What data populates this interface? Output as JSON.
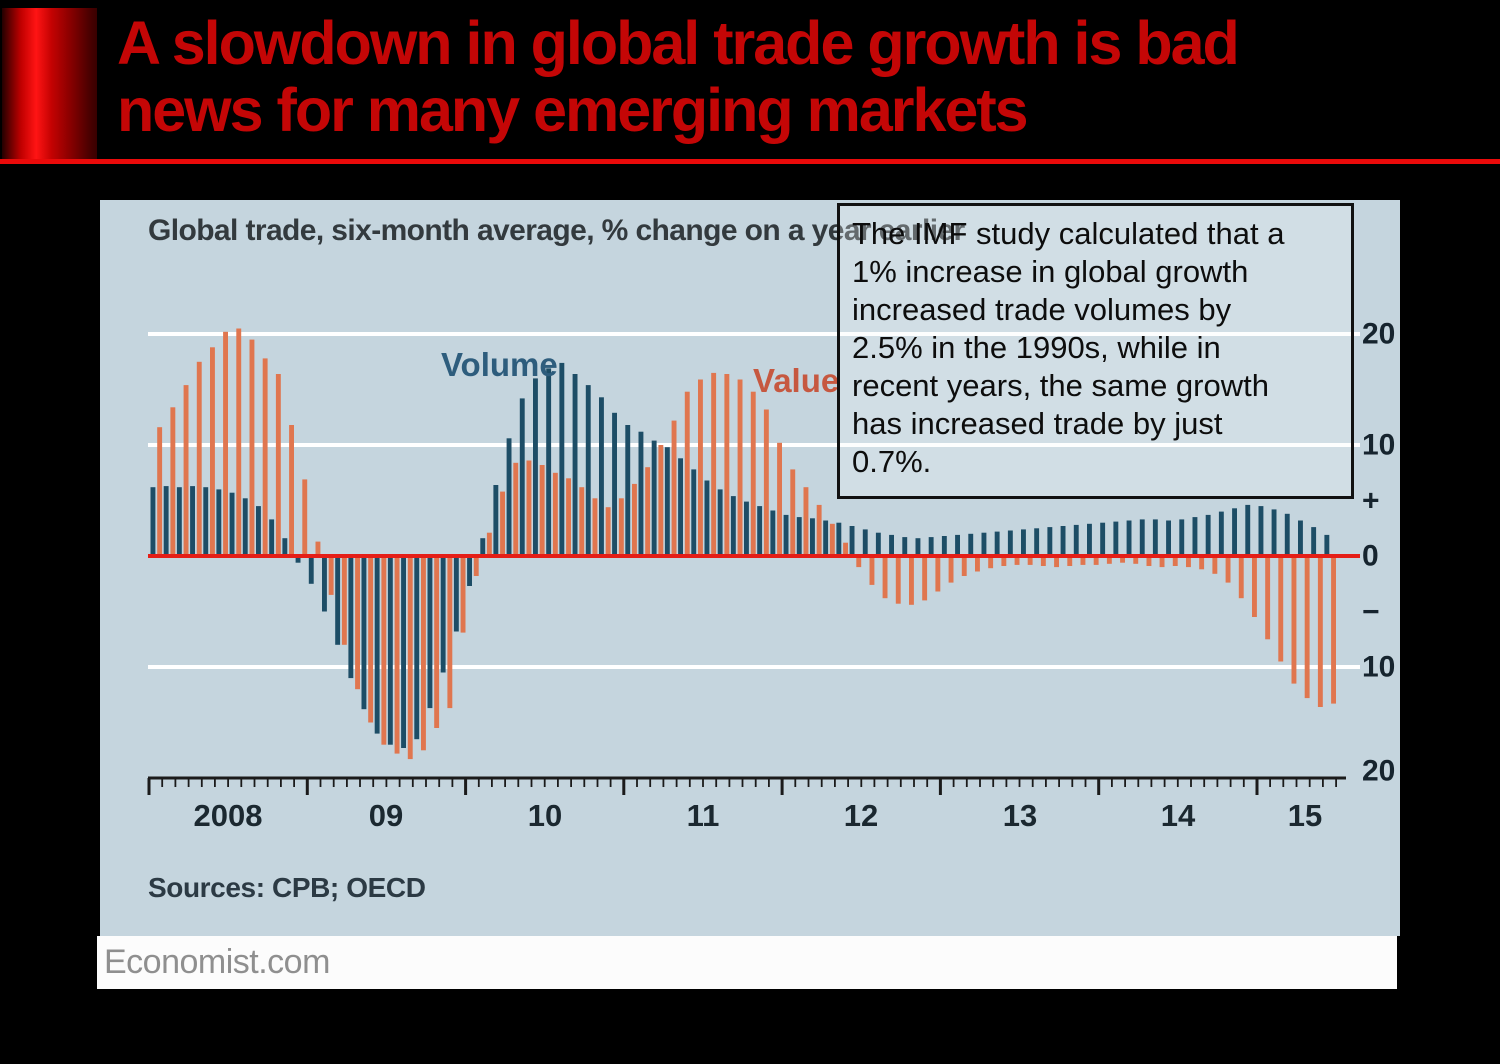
{
  "slide": {
    "title_lines": [
      "A slowdown in global trade growth is bad",
      "news for many emerging markets"
    ],
    "title_color": "#c40606"
  },
  "chart": {
    "subtitle": "Global trade, six-month average, % change on a year earlier",
    "legend": {
      "volume_label": "Volume",
      "value_label": "Value"
    },
    "annotation_lines": [
      "The IMF study calculated that a",
      "1% increase in global growth",
      "increased trade volumes by",
      "2.5% in the 1990s, while in",
      "recent years, the same growth",
      "has increased trade by just",
      "0.7%."
    ],
    "annotation_text": "The IMF study calculated that a 1% increase in global growth increased trade volumes by 2.5% in the 1990s, while in recent years, the same growth has increased trade by just 0.7%.",
    "sources": "Sources: CPB; OECD",
    "footer": "Economist.com",
    "y_axis": {
      "labels": [
        "20",
        "10",
        "+",
        "0",
        "−",
        "10",
        "20"
      ]
    },
    "x_axis": {
      "years": [
        "2008",
        "09",
        "10",
        "11",
        "12",
        "13",
        "14",
        "15"
      ]
    },
    "colors": {
      "panel": "#c5d5de",
      "volume": "#1d4d66",
      "value": "#e0764f",
      "zero_line": "#e51e17",
      "grid": "#ffffff",
      "axis": "#1b1b1b",
      "title_red": "#c40606"
    }
  },
  "chart_data": {
    "type": "bar",
    "title": "Global trade, six-month average, % change on a year earlier",
    "unit": "%",
    "frequency": "monthly",
    "x_start": "2008-01",
    "x_end": "2015-06",
    "ylim": [
      -20,
      20
    ],
    "y_gridlines": [
      20,
      10,
      0,
      -10,
      -20
    ],
    "x_tick_years": [
      "2008",
      "09",
      "10",
      "11",
      "12",
      "13",
      "14",
      "15"
    ],
    "legend_position": "inside-top",
    "grid": true,
    "series": [
      {
        "name": "Volume",
        "color": "#1d4d66",
        "values": [
          6.2,
          6.3,
          6.2,
          6.3,
          6.2,
          6.0,
          5.7,
          5.2,
          4.5,
          3.3,
          1.6,
          -0.6,
          -2.5,
          -5.0,
          -8.0,
          -11.0,
          -13.8,
          -16.0,
          -17.0,
          -17.3,
          -16.5,
          -13.7,
          -10.5,
          -6.8,
          -2.7,
          1.6,
          6.4,
          10.6,
          14.2,
          16.0,
          16.9,
          17.4,
          16.4,
          15.4,
          14.3,
          12.9,
          11.8,
          11.2,
          10.4,
          9.8,
          8.8,
          7.8,
          6.8,
          6.0,
          5.4,
          4.9,
          4.5,
          4.1,
          3.7,
          3.5,
          3.4,
          3.2,
          3.0,
          2.7,
          2.4,
          2.1,
          1.9,
          1.7,
          1.6,
          1.7,
          1.8,
          1.9,
          2.0,
          2.1,
          2.2,
          2.3,
          2.4,
          2.5,
          2.6,
          2.7,
          2.8,
          2.9,
          3.0,
          3.1,
          3.2,
          3.3,
          3.3,
          3.2,
          3.3,
          3.5,
          3.7,
          4.0,
          4.3,
          4.6,
          4.5,
          4.2,
          3.8,
          3.2,
          2.6,
          1.9
        ]
      },
      {
        "name": "Value",
        "color": "#e0764f",
        "values": [
          11.6,
          13.4,
          15.4,
          17.5,
          18.8,
          20.2,
          20.5,
          19.5,
          17.8,
          16.4,
          11.8,
          6.9,
          1.3,
          -3.5,
          -8.0,
          -12.0,
          -15.0,
          -17.0,
          -17.8,
          -18.3,
          -17.5,
          -15.5,
          -13.7,
          -6.9,
          -1.8,
          2.1,
          5.8,
          8.4,
          8.6,
          8.2,
          7.5,
          7.0,
          6.2,
          5.2,
          4.4,
          5.2,
          6.5,
          8.0,
          10.0,
          12.2,
          14.8,
          15.9,
          16.5,
          16.4,
          15.9,
          14.8,
          13.2,
          10.2,
          7.8,
          6.2,
          4.6,
          2.9,
          1.2,
          -1.0,
          -2.6,
          -3.8,
          -4.3,
          -4.4,
          -4.0,
          -3.2,
          -2.4,
          -1.8,
          -1.4,
          -1.1,
          -0.9,
          -0.8,
          -0.8,
          -0.9,
          -1.0,
          -0.9,
          -0.8,
          -0.8,
          -0.7,
          -0.6,
          -0.7,
          -0.9,
          -1.0,
          -0.9,
          -1.0,
          -1.2,
          -1.6,
          -2.4,
          -3.8,
          -5.5,
          -7.5,
          -9.5,
          -11.5,
          -12.8,
          -13.6,
          -13.3
        ]
      }
    ]
  }
}
